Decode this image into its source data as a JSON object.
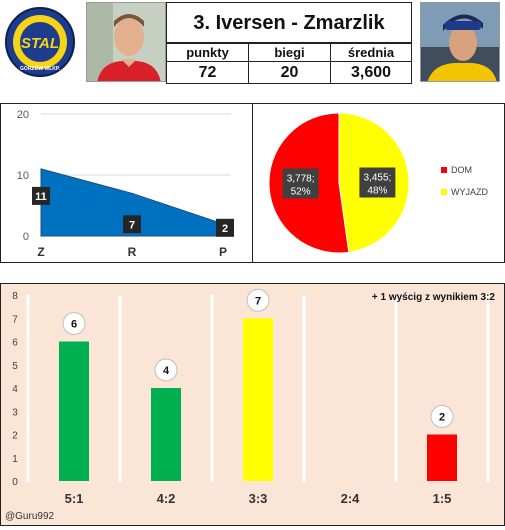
{
  "header": {
    "logo_text_top": "STAL",
    "logo_text_bottom": "GORZÓW WLKP.",
    "title": "3. Iversen - Zmarzlik",
    "stats": [
      {
        "label": "punkty",
        "value": "72"
      },
      {
        "label": "biegi",
        "value": "20"
      },
      {
        "label": "średnia",
        "value": "3,600"
      }
    ]
  },
  "colors": {
    "blue": "#0070c0",
    "green": "#00b050",
    "yellow": "#ffff00",
    "red": "#ff0000",
    "bar_bg": "#fbe5d6"
  },
  "chart_data": [
    {
      "type": "area",
      "categories": [
        "Z",
        "R",
        "P"
      ],
      "values": [
        11,
        7,
        2
      ],
      "ylim": [
        0,
        20
      ],
      "yticks": [
        "0",
        "10",
        "20"
      ]
    },
    {
      "type": "pie",
      "labels": [
        "DOM",
        "WYJAZD"
      ],
      "values": [
        3.778,
        3.455
      ],
      "value_labels": [
        "3,778;",
        "3,455;"
      ],
      "percent_labels": [
        "52%",
        "48%"
      ],
      "legend": [
        "DOM",
        "WYJAZD"
      ],
      "legend_position": "right"
    },
    {
      "type": "bar",
      "categories": [
        "5:1",
        "4:2",
        "3:3",
        "2:4",
        "1:5"
      ],
      "values": [
        6,
        4,
        7,
        0,
        2
      ],
      "colors": [
        "#00b050",
        "#00b050",
        "#ffff00",
        "#00b050",
        "#ff0000"
      ],
      "ylim": [
        0,
        8
      ],
      "yticks": [
        "0",
        "1",
        "2",
        "3",
        "4",
        "5",
        "6",
        "7",
        "8"
      ],
      "annotation": "+ 1 wyścig z wynikiem 3:2",
      "watermark": "@Guru992"
    }
  ]
}
